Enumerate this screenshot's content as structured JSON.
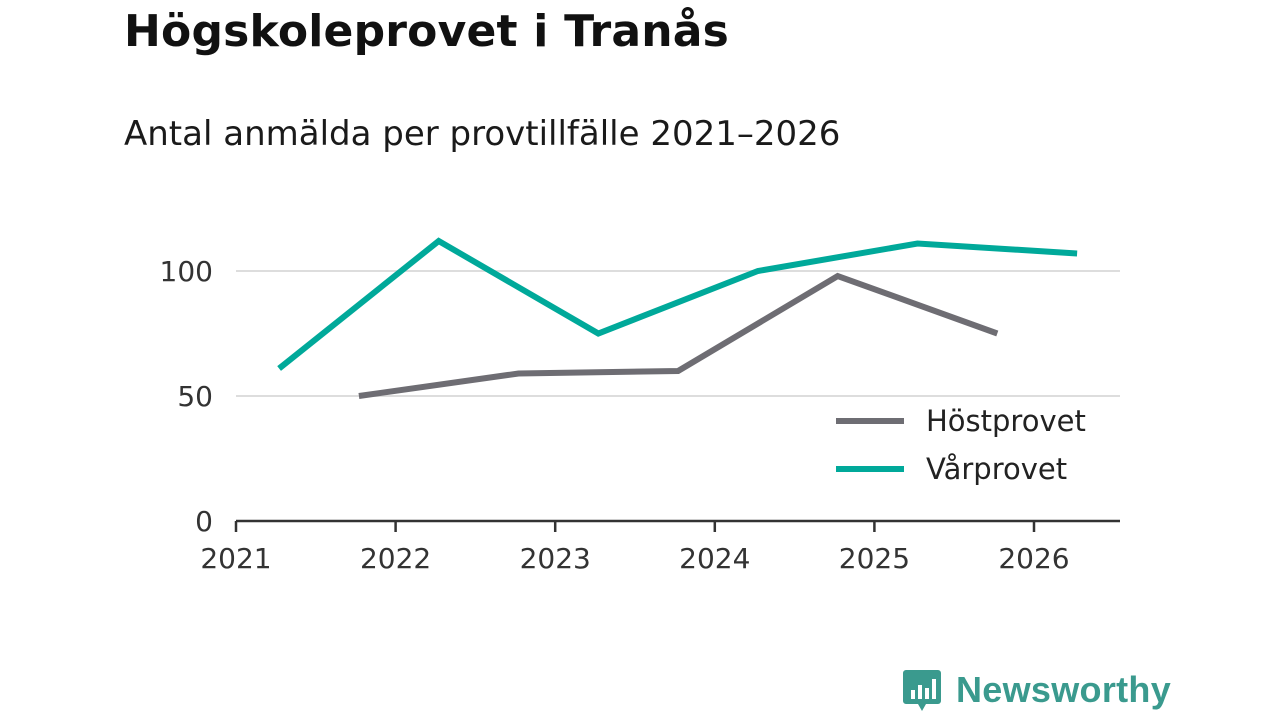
{
  "title": "Högskoleprovet i Tranås",
  "subtitle": "Antal anmälda per provtillfälle 2021–2026",
  "brand": {
    "name": "Newsworthy",
    "logo_icon": "newsworthy-chart-bubble-icon"
  },
  "colors": {
    "hostprovet": "#6e6d73",
    "varprovet": "#00a99a",
    "grid": "#dddddd",
    "axis": "#333333"
  },
  "chart_data": {
    "type": "line",
    "title": "Högskoleprovet i Tranås",
    "subtitle": "Antal anmälda per provtillfälle 2021–2026",
    "xlabel": "",
    "ylabel": "",
    "xlim": [
      2021,
      2026.55
    ],
    "ylim": [
      0,
      100
    ],
    "x_ticks": [
      "2021",
      "2022",
      "2023",
      "2024",
      "2025",
      "2026"
    ],
    "y_ticks": [
      "0",
      "50",
      "100"
    ],
    "legend_position": "bottom-right",
    "series": [
      {
        "name": "Höstprovet",
        "color": "#6e6d73",
        "x": [
          2021.77,
          2022.77,
          2023.77,
          2024.77,
          2025.77
        ],
        "values": [
          50,
          59,
          60,
          98,
          75
        ]
      },
      {
        "name": "Vårprovet",
        "color": "#00a99a",
        "x": [
          2021.27,
          2022.27,
          2023.27,
          2024.27,
          2025.27,
          2026.27
        ],
        "values": [
          61,
          112,
          75,
          100,
          111,
          107
        ]
      }
    ]
  }
}
